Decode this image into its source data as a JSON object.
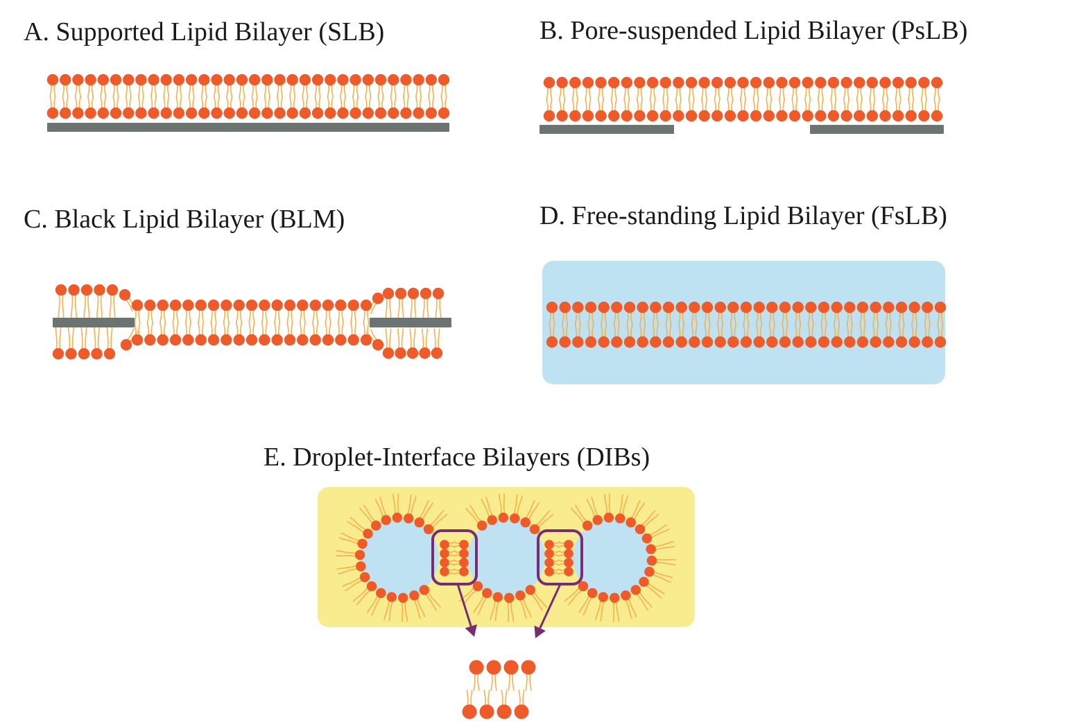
{
  "panels": {
    "a": {
      "title": "A. Supported Lipid Bilayer (SLB)"
    },
    "b": {
      "title": "B. Pore-suspended Lipid Bilayer (PsLB)"
    },
    "c": {
      "title": "C. Black Lipid Bilayer (BLM)"
    },
    "d": {
      "title": "D. Free-standing Lipid Bilayer (FsLB)"
    },
    "e": {
      "title": "E. Droplet-Interface Bilayers (DIBs)"
    }
  },
  "colors": {
    "head": "#ee5a2a",
    "tail": "#f6b04e",
    "support": "#6b7470",
    "water": "#bfe2f3",
    "oil": "#f8ec8f",
    "highlight": "#7a2c72"
  }
}
